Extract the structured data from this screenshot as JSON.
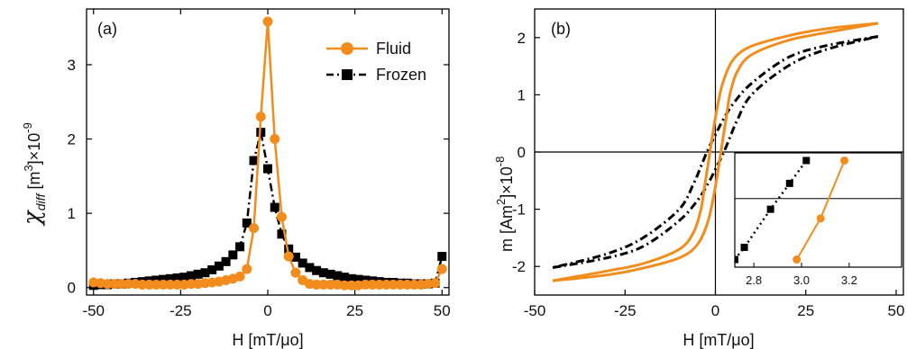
{
  "colors": {
    "fluid": "#f28c1c",
    "frozen": "#000000",
    "axis": "#000000"
  },
  "chart_data": [
    {
      "id": "a",
      "type": "line",
      "panel_label": "(a)",
      "xlabel": "H [mT/μo]",
      "ylabel": {
        "symbol": "χ",
        "subscript": "diff",
        "rest": " [m",
        "sup3": "3",
        "mid": "]×10",
        "sup": "-9"
      },
      "xlim": [
        -52,
        52
      ],
      "ylim": [
        -0.1,
        3.75
      ],
      "xticks": [
        -50,
        -25,
        0,
        25,
        50
      ],
      "xtick_labels": [
        "-50",
        "-25",
        "0",
        "25",
        "50"
      ],
      "yticks": [
        0,
        1,
        2,
        3
      ],
      "ytick_labels": [
        "0",
        "1",
        "2",
        "3"
      ],
      "legend": {
        "position": "top-right",
        "entries": [
          "Fluid",
          "Frozen"
        ]
      },
      "series": [
        {
          "name": "Fluid",
          "color_key": "fluid",
          "marker": "circle",
          "line": "solid",
          "x": [
            -50,
            -48,
            -46,
            -44,
            -42,
            -40,
            -38,
            -36,
            -34,
            -32,
            -30,
            -28,
            -26,
            -24,
            -22,
            -20,
            -18,
            -16,
            -14,
            -12,
            -10,
            -8,
            -6,
            -4,
            -2,
            0,
            2,
            4,
            6,
            8,
            10,
            12,
            14,
            16,
            18,
            20,
            22,
            24,
            26,
            28,
            30,
            32,
            34,
            36,
            38,
            40,
            42,
            44,
            46,
            48,
            50
          ],
          "y": [
            0.07,
            0.06,
            0.05,
            0.05,
            0.05,
            0.05,
            0.05,
            0.04,
            0.04,
            0.04,
            0.04,
            0.04,
            0.04,
            0.04,
            0.05,
            0.05,
            0.06,
            0.07,
            0.08,
            0.1,
            0.12,
            0.15,
            0.25,
            0.8,
            2.3,
            3.58,
            2.0,
            0.95,
            0.42,
            0.2,
            0.1,
            0.05,
            0.04,
            0.04,
            0.04,
            0.04,
            0.03,
            0.03,
            0.03,
            0.04,
            0.04,
            0.04,
            0.04,
            0.04,
            0.04,
            0.04,
            0.04,
            0.04,
            0.05,
            0.06,
            0.25
          ]
        },
        {
          "name": "Frozen",
          "color_key": "frozen",
          "marker": "square",
          "line": "dashdot",
          "x": [
            -50,
            -48,
            -46,
            -44,
            -42,
            -40,
            -38,
            -36,
            -34,
            -32,
            -30,
            -28,
            -26,
            -24,
            -22,
            -20,
            -18,
            -16,
            -14,
            -12,
            -10,
            -8,
            -6,
            -4,
            -2,
            0,
            2,
            4,
            6,
            8,
            10,
            12,
            14,
            16,
            18,
            20,
            22,
            24,
            26,
            28,
            30,
            32,
            34,
            36,
            38,
            40,
            42,
            44,
            46,
            48,
            50
          ],
          "y": [
            0.03,
            0.04,
            0.04,
            0.05,
            0.05,
            0.06,
            0.07,
            0.08,
            0.09,
            0.1,
            0.11,
            0.12,
            0.13,
            0.14,
            0.16,
            0.18,
            0.2,
            0.24,
            0.29,
            0.35,
            0.44,
            0.55,
            0.87,
            1.71,
            2.09,
            1.6,
            1.08,
            0.72,
            0.52,
            0.41,
            0.33,
            0.27,
            0.23,
            0.2,
            0.18,
            0.16,
            0.14,
            0.12,
            0.11,
            0.1,
            0.09,
            0.08,
            0.07,
            0.07,
            0.06,
            0.06,
            0.05,
            0.05,
            0.05,
            0.06,
            0.42
          ]
        }
      ]
    },
    {
      "id": "b",
      "type": "line",
      "panel_label": "(b)",
      "xlabel": "H [mT/μo]",
      "ylabel": {
        "text": "m [Am",
        "sup2": "2",
        "mid": "]×10",
        "sup": "-8"
      },
      "xlim": [
        -50,
        52
      ],
      "ylim": [
        -2.5,
        2.5
      ],
      "xticks": [
        -50,
        -25,
        0,
        25,
        50
      ],
      "xtick_labels": [
        "-50",
        "-25",
        "0",
        "25",
        "50"
      ],
      "yticks": [
        2,
        1,
        0,
        -1,
        -2
      ],
      "ytick_labels": [
        "2",
        "1",
        "0",
        "-1",
        "-2"
      ],
      "series": [
        {
          "name": "Fluid",
          "color_key": "fluid",
          "line": "solid",
          "branches": [
            {
              "x": [
                45,
                30,
                20,
                10,
                5,
                2,
                0,
                -2,
                -3,
                -4,
                -6,
                -10,
                -20,
                -30,
                -45
              ],
              "y": [
                2.25,
                2.15,
                2.03,
                1.85,
                1.62,
                1.2,
                0.6,
                -0.2,
                -0.6,
                -1.0,
                -1.4,
                -1.7,
                -1.95,
                -2.08,
                -2.25
              ]
            },
            {
              "x": [
                -45,
                -30,
                -20,
                -10,
                -5,
                -2,
                0,
                2,
                3,
                4,
                6,
                10,
                20,
                30,
                45
              ],
              "y": [
                -2.25,
                -2.15,
                -2.03,
                -1.85,
                -1.62,
                -1.2,
                -0.6,
                0.2,
                0.6,
                1.0,
                1.4,
                1.7,
                1.95,
                2.08,
                2.25
              ]
            }
          ]
        },
        {
          "name": "Frozen",
          "color_key": "frozen",
          "line": "dashdot",
          "branches": [
            {
              "x": [
                45,
                30,
                20,
                10,
                5,
                2,
                0,
                -2,
                -4,
                -6,
                -10,
                -20,
                -30,
                -45
              ],
              "y": [
                2.02,
                1.85,
                1.65,
                1.2,
                0.85,
                0.55,
                0.3,
                0.05,
                -0.25,
                -0.55,
                -1.0,
                -1.5,
                -1.78,
                -2.02
              ]
            },
            {
              "x": [
                -45,
                -30,
                -20,
                -10,
                -5,
                -2,
                0,
                2,
                4,
                6,
                10,
                20,
                30,
                45
              ],
              "y": [
                -2.02,
                -1.85,
                -1.65,
                -1.2,
                -0.85,
                -0.55,
                -0.3,
                -0.05,
                0.25,
                0.55,
                1.0,
                1.5,
                1.78,
                2.02
              ]
            }
          ]
        }
      ],
      "inset": {
        "xlim": [
          2.72,
          3.42
        ],
        "ylim": [
          -0.45,
          0.3
        ],
        "xticks": [
          2.8,
          3.0,
          3.2
        ],
        "xtick_labels": [
          "2.8",
          "3.0",
          "3.2"
        ],
        "hline": 0,
        "series": [
          {
            "name": "Fluid",
            "color_key": "fluid",
            "marker": "circle",
            "line": "solid",
            "x": [
              2.98,
              3.08,
              3.18
            ],
            "y": [
              -0.4,
              -0.13,
              0.25
            ]
          },
          {
            "name": "Frozen",
            "color_key": "frozen",
            "marker": "square",
            "line": "dotted",
            "x": [
              2.72,
              2.76,
              2.87,
              2.95,
              3.02
            ],
            "y": [
              -0.4,
              -0.32,
              -0.07,
              0.1,
              0.25
            ]
          }
        ]
      }
    }
  ]
}
